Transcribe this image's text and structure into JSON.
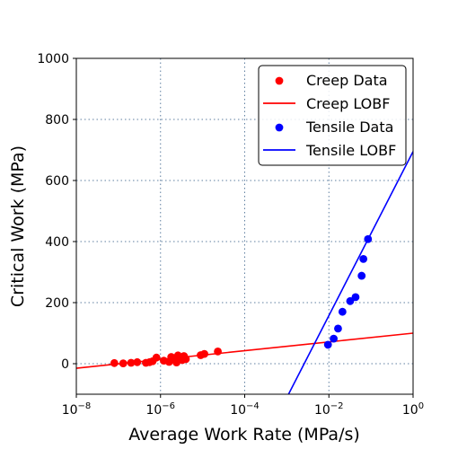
{
  "chart_data": {
    "type": "scatter",
    "xlabel": "Average Work Rate (MPa/s)",
    "ylabel": "Critical Work (MPa)",
    "xscale": "log",
    "xlim": [
      1e-08,
      1
    ],
    "ylim": [
      -100,
      1000
    ],
    "x_ticks": [
      1e-08,
      1e-06,
      0.0001,
      0.01,
      1
    ],
    "x_tick_labels": [
      {
        "base": "10",
        "exp": "−8"
      },
      {
        "base": "10",
        "exp": "−6"
      },
      {
        "base": "10",
        "exp": "−4"
      },
      {
        "base": "10",
        "exp": "−2"
      },
      {
        "base": "10",
        "exp": "0"
      }
    ],
    "y_ticks": [
      0,
      200,
      400,
      600,
      800,
      1000
    ],
    "y_tick_labels": [
      "0",
      "200",
      "400",
      "600",
      "800",
      "1000"
    ],
    "grid": true,
    "legend_position": "top-right",
    "series": [
      {
        "name": "Creep Data",
        "kind": "scatter",
        "color": "#ff0000",
        "points": [
          [
            8e-08,
            2
          ],
          [
            1.3e-07,
            1
          ],
          [
            2e-07,
            3
          ],
          [
            2.8e-07,
            5
          ],
          [
            4.5e-07,
            3
          ],
          [
            5.5e-07,
            5
          ],
          [
            6.5e-07,
            8
          ],
          [
            8e-07,
            20
          ],
          [
            1.2e-06,
            10
          ],
          [
            1.6e-06,
            6
          ],
          [
            1.8e-06,
            22
          ],
          [
            2.1e-06,
            15
          ],
          [
            2.4e-06,
            4
          ],
          [
            2.6e-06,
            27
          ],
          [
            3e-06,
            20
          ],
          [
            3.3e-06,
            12
          ],
          [
            3.6e-06,
            25
          ],
          [
            4e-06,
            15
          ],
          [
            9e-06,
            28
          ],
          [
            1.1e-05,
            32
          ],
          [
            2.3e-05,
            40
          ]
        ]
      },
      {
        "name": "Creep LOBF",
        "kind": "line",
        "color": "#ff0000",
        "points": [
          [
            1e-08,
            -15
          ],
          [
            1,
            100
          ]
        ]
      },
      {
        "name": "Tensile Data",
        "kind": "scatter",
        "color": "#0000ff",
        "points": [
          [
            0.0095,
            62
          ],
          [
            0.013,
            82
          ],
          [
            0.0165,
            115
          ],
          [
            0.021,
            170
          ],
          [
            0.032,
            205
          ],
          [
            0.043,
            218
          ],
          [
            0.06,
            288
          ],
          [
            0.066,
            343
          ],
          [
            0.085,
            408
          ]
        ]
      },
      {
        "name": "Tensile LOBF",
        "kind": "line",
        "color": "#0000ff",
        "points": [
          [
            0.0011,
            -100
          ],
          [
            1,
            695
          ]
        ]
      }
    ]
  }
}
